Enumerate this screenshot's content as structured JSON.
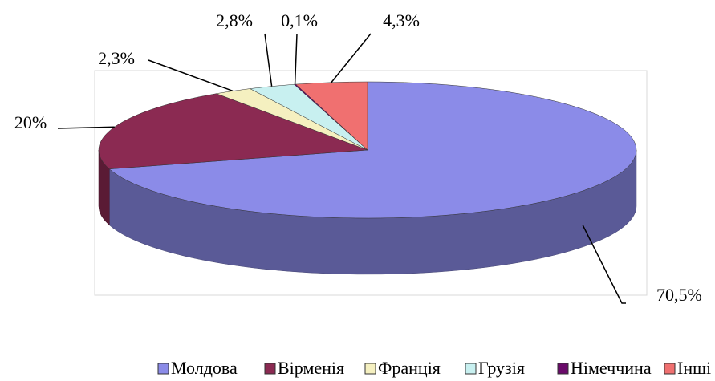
{
  "chart_data": {
    "type": "pie3d",
    "categories": [
      "Молдова",
      "Вірменія",
      "Франція",
      "Грузія",
      "Німеччина",
      "Інші"
    ],
    "values": [
      70.5,
      20,
      2.3,
      2.8,
      0.1,
      4.3
    ],
    "value_labels": [
      "70,5%",
      "20%",
      "2,3%",
      "2,8%",
      "0,1%",
      "4,3%"
    ],
    "colors": [
      "#8b8be8",
      "#8b2a52",
      "#f5f0c0",
      "#c8f0f0",
      "#6a0a6a",
      "#f07070"
    ],
    "legend": "bottom"
  }
}
